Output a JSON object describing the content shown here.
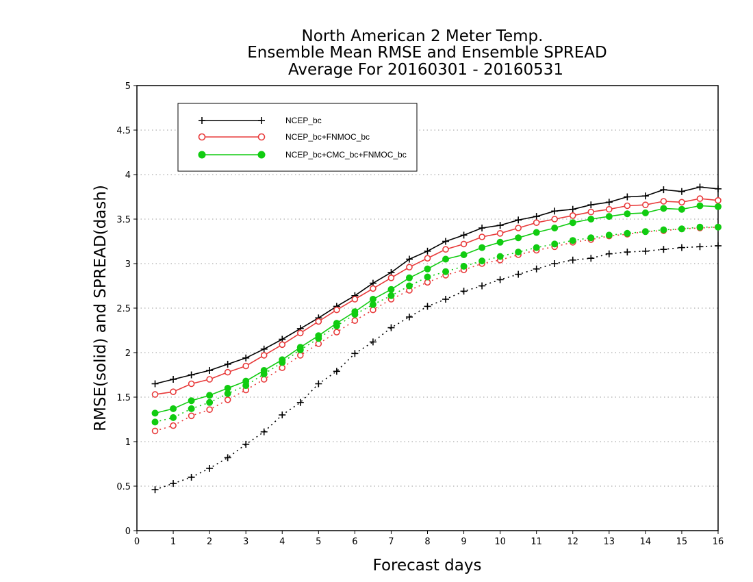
{
  "chart_data": {
    "type": "line",
    "title_lines": [
      "North American 2 Meter Temp.",
      "Ensemble Mean RMSE and Ensemble SPREAD",
      "Average For 20160301 - 20160531"
    ],
    "xlabel": "Forecast days",
    "ylabel": "RMSE(solid) and SPREAD(dash)",
    "xlim": [
      0,
      16
    ],
    "ylim": [
      0,
      5
    ],
    "xticks": [
      "0",
      "1",
      "2",
      "3",
      "4",
      "5",
      "6",
      "7",
      "8",
      "9",
      "10",
      "11",
      "12",
      "13",
      "14",
      "15",
      "16"
    ],
    "yticks": [
      "0",
      "0.5",
      "1",
      "1.5",
      "2",
      "2.5",
      "3",
      "3.5",
      "4",
      "4.5",
      "5"
    ],
    "grid": "horizontal dotted",
    "legend_position": "top-left",
    "x": [
      0.5,
      1,
      1.5,
      2,
      2.5,
      3,
      3.5,
      4,
      4.5,
      5,
      5.5,
      6,
      6.5,
      7,
      7.5,
      8,
      8.5,
      9,
      9.5,
      10,
      10.5,
      11,
      11.5,
      12,
      12.5,
      13,
      13.5,
      14,
      14.5,
      15,
      15.5,
      16
    ],
    "series": [
      {
        "name": "NCEP_bc",
        "color": "#000000",
        "marker": "plus",
        "rmse": [
          1.65,
          1.7,
          1.75,
          1.8,
          1.87,
          1.94,
          2.04,
          2.15,
          2.27,
          2.39,
          2.52,
          2.64,
          2.78,
          2.9,
          3.05,
          3.14,
          3.25,
          3.32,
          3.4,
          3.43,
          3.49,
          3.53,
          3.59,
          3.61,
          3.66,
          3.69,
          3.75,
          3.76,
          3.83,
          3.81,
          3.86,
          3.84
        ],
        "spread": [
          0.46,
          0.53,
          0.6,
          0.7,
          0.82,
          0.97,
          1.11,
          1.3,
          1.44,
          1.65,
          1.79,
          1.99,
          2.12,
          2.28,
          2.4,
          2.52,
          2.6,
          2.69,
          2.75,
          2.82,
          2.88,
          2.94,
          3.0,
          3.04,
          3.06,
          3.11,
          3.13,
          3.14,
          3.16,
          3.18,
          3.19,
          3.2
        ]
      },
      {
        "name": "NCEP_bc+FNMOC_bc",
        "color": "#e83a3a",
        "marker": "open-circle",
        "rmse": [
          1.53,
          1.56,
          1.65,
          1.7,
          1.78,
          1.85,
          1.97,
          2.09,
          2.22,
          2.35,
          2.48,
          2.6,
          2.72,
          2.84,
          2.96,
          3.06,
          3.16,
          3.22,
          3.3,
          3.34,
          3.4,
          3.46,
          3.5,
          3.54,
          3.58,
          3.61,
          3.65,
          3.66,
          3.7,
          3.69,
          3.73,
          3.71
        ],
        "spread": [
          1.12,
          1.18,
          1.29,
          1.36,
          1.47,
          1.58,
          1.7,
          1.83,
          1.97,
          2.1,
          2.23,
          2.36,
          2.48,
          2.6,
          2.7,
          2.79,
          2.87,
          2.93,
          3.0,
          3.04,
          3.1,
          3.15,
          3.19,
          3.24,
          3.27,
          3.31,
          3.33,
          3.36,
          3.37,
          3.39,
          3.4,
          3.41
        ]
      },
      {
        "name": "NCEP_bc+CMC_bc+FNMOC_bc",
        "color": "#11cc11",
        "marker": "filled-circle",
        "rmse": [
          1.32,
          1.37,
          1.46,
          1.52,
          1.6,
          1.68,
          1.8,
          1.92,
          2.06,
          2.19,
          2.33,
          2.46,
          2.6,
          2.71,
          2.84,
          2.94,
          3.05,
          3.1,
          3.18,
          3.24,
          3.29,
          3.35,
          3.4,
          3.46,
          3.5,
          3.53,
          3.56,
          3.57,
          3.62,
          3.61,
          3.65,
          3.64
        ],
        "spread": [
          1.22,
          1.27,
          1.37,
          1.44,
          1.54,
          1.63,
          1.76,
          1.89,
          2.03,
          2.16,
          2.3,
          2.43,
          2.54,
          2.64,
          2.75,
          2.85,
          2.91,
          2.97,
          3.03,
          3.08,
          3.13,
          3.18,
          3.22,
          3.26,
          3.29,
          3.32,
          3.34,
          3.36,
          3.38,
          3.39,
          3.41,
          3.41
        ]
      }
    ]
  }
}
